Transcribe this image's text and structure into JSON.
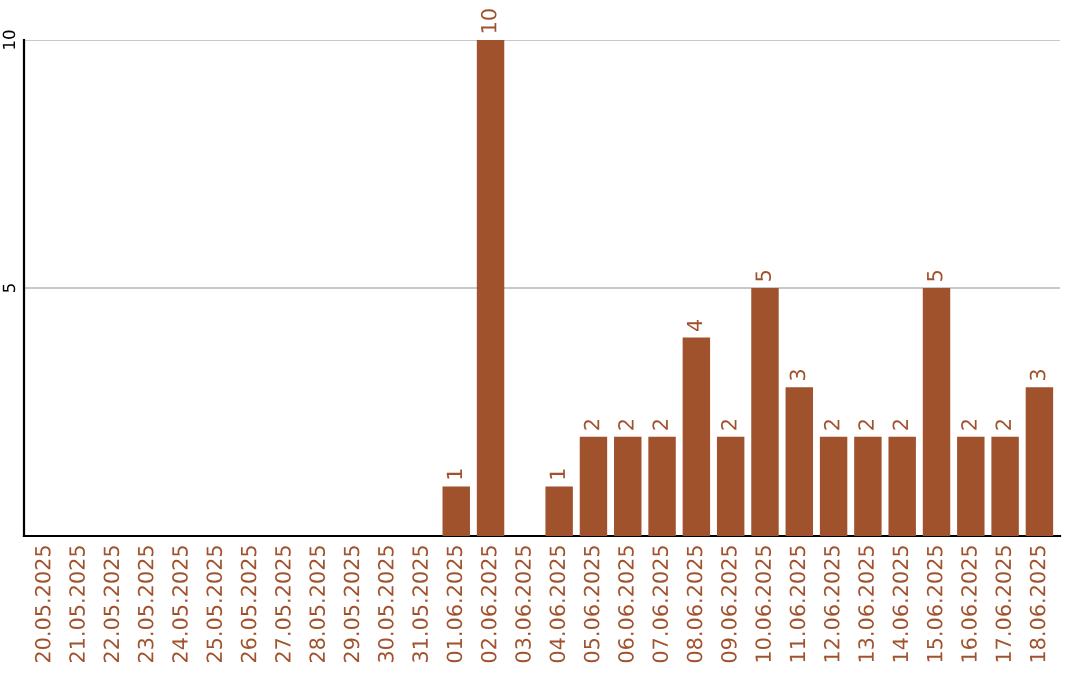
{
  "chart_data": {
    "type": "bar",
    "categories": [
      "20.05.2025",
      "21.05.2025",
      "22.05.2025",
      "23.05.2025",
      "24.05.2025",
      "25.05.2025",
      "26.05.2025",
      "27.05.2025",
      "28.05.2025",
      "29.05.2025",
      "30.05.2025",
      "31.05.2025",
      "01.06.2025",
      "02.06.2025",
      "03.06.2025",
      "04.06.2025",
      "05.06.2025",
      "06.06.2025",
      "07.06.2025",
      "08.06.2025",
      "09.06.2025",
      "10.06.2025",
      "11.06.2025",
      "12.06.2025",
      "13.06.2025",
      "14.06.2025",
      "15.06.2025",
      "16.06.2025",
      "17.06.2025",
      "18.06.2025"
    ],
    "values": [
      0,
      0,
      0,
      0,
      0,
      0,
      0,
      0,
      0,
      0,
      0,
      0,
      1,
      10,
      0,
      1,
      2,
      2,
      2,
      4,
      2,
      5,
      3,
      2,
      2,
      2,
      5,
      2,
      2,
      3
    ],
    "value_labels": [
      null,
      null,
      null,
      null,
      null,
      null,
      null,
      null,
      null,
      null,
      null,
      null,
      "1",
      "10",
      null,
      "1",
      "2",
      "2",
      "2",
      "4",
      "2",
      "5",
      "3",
      "2",
      "2",
      "2",
      "5",
      "2",
      "2",
      "3"
    ],
    "color": "#a0522d",
    "ylim": [
      0,
      10
    ],
    "yticks": [
      5,
      10
    ],
    "grid": "y"
  }
}
